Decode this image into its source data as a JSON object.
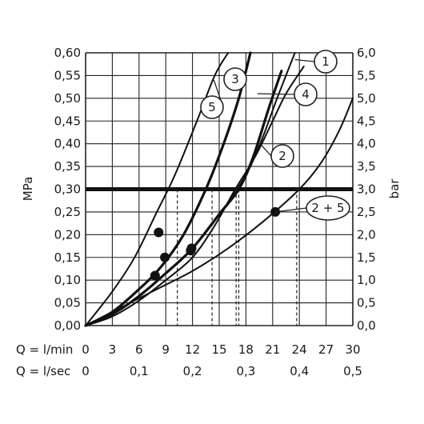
{
  "chart_data": {
    "type": "line",
    "ylabel_left": "MPa",
    "ylabel_right": "bar",
    "xlabel_lmin": "Q = l/min",
    "xlabel_lsec": "Q = l/sec",
    "xlim": [
      0,
      30
    ],
    "ylim": [
      0,
      0.6
    ],
    "grid": true,
    "x_ticks_lmin": [
      "0",
      "3",
      "6",
      "9",
      "12",
      "15",
      "18",
      "21",
      "24",
      "27",
      "30"
    ],
    "x_ticks_lsec": [
      {
        "x": 0,
        "label": "0"
      },
      {
        "x": 6,
        "label": "0,1"
      },
      {
        "x": 12,
        "label": "0,2"
      },
      {
        "x": 18,
        "label": "0,3"
      },
      {
        "x": 24,
        "label": "0,4"
      },
      {
        "x": 30,
        "label": "0,5"
      }
    ],
    "y_ticks_left": [
      {
        "y": 0.0,
        "label": "0,00"
      },
      {
        "y": 0.05,
        "label": "0,05"
      },
      {
        "y": 0.1,
        "label": "0,10"
      },
      {
        "y": 0.15,
        "label": "0,15"
      },
      {
        "y": 0.2,
        "label": "0,20"
      },
      {
        "y": 0.25,
        "label": "0,25"
      },
      {
        "y": 0.3,
        "label": "0,30"
      },
      {
        "y": 0.35,
        "label": "0,35"
      },
      {
        "y": 0.4,
        "label": "0,40"
      },
      {
        "y": 0.45,
        "label": "0,45"
      },
      {
        "y": 0.5,
        "label": "0,50"
      },
      {
        "y": 0.55,
        "label": "0,55"
      },
      {
        "y": 0.6,
        "label": "0,60"
      }
    ],
    "y_ticks_right": [
      {
        "y": 0.0,
        "label": "0,0"
      },
      {
        "y": 0.05,
        "label": "0,5"
      },
      {
        "y": 0.1,
        "label": "1,0"
      },
      {
        "y": 0.15,
        "label": "1,5"
      },
      {
        "y": 0.2,
        "label": "2,0"
      },
      {
        "y": 0.25,
        "label": "2,5"
      },
      {
        "y": 0.3,
        "label": "3,0"
      },
      {
        "y": 0.35,
        "label": "3,5"
      },
      {
        "y": 0.4,
        "label": "4,0"
      },
      {
        "y": 0.45,
        "label": "4,5"
      },
      {
        "y": 0.5,
        "label": "5,0"
      },
      {
        "y": 0.55,
        "label": "5,5"
      },
      {
        "y": 0.6,
        "label": "6,0"
      }
    ],
    "reference_line": {
      "y": 0.3
    },
    "series": [
      {
        "name": "5",
        "bold": false,
        "x": [
          0,
          3,
          5.5,
          8,
          10,
          12.5,
          14.5,
          16
        ],
        "y": [
          0,
          0.075,
          0.15,
          0.25,
          0.33,
          0.45,
          0.55,
          0.6
        ]
      },
      {
        "name": "3",
        "bold": true,
        "x": [
          0,
          3,
          6,
          8.5,
          11,
          13.5,
          15.5,
          17.2,
          18.5
        ],
        "y": [
          0,
          0.03,
          0.08,
          0.13,
          0.2,
          0.3,
          0.4,
          0.5,
          0.6
        ]
      },
      {
        "name": "4",
        "bold": true,
        "x": [
          0,
          3,
          6,
          9,
          12,
          15,
          17.2,
          18.8,
          20.6,
          22
        ],
        "y": [
          0,
          0.025,
          0.065,
          0.115,
          0.17,
          0.245,
          0.3,
          0.37,
          0.48,
          0.56
        ]
      },
      {
        "name": "1",
        "bold": false,
        "x": [
          0,
          3,
          6,
          9,
          12,
          14.5,
          17,
          18.5,
          20,
          21.5,
          23.5
        ],
        "y": [
          0,
          0.025,
          0.065,
          0.115,
          0.17,
          0.23,
          0.3,
          0.35,
          0.42,
          0.5,
          0.6
        ]
      },
      {
        "name": "2",
        "bold": false,
        "x": [
          0,
          3,
          6,
          9,
          12,
          14.5,
          16.8,
          19,
          21,
          22.5,
          24.5
        ],
        "y": [
          0,
          0.02,
          0.055,
          0.1,
          0.15,
          0.22,
          0.3,
          0.37,
          0.45,
          0.51,
          0.57
        ]
      },
      {
        "name": "2 + 5",
        "bold": false,
        "x": [
          0,
          4,
          8,
          12,
          16,
          20,
          24,
          26.5,
          28.5,
          30
        ],
        "y": [
          0,
          0.04,
          0.08,
          0.12,
          0.17,
          0.23,
          0.3,
          0.36,
          0.43,
          0.5
        ]
      }
    ],
    "markers": [
      {
        "x": 8.2,
        "y": 0.205
      },
      {
        "x": 8.9,
        "y": 0.15
      },
      {
        "x": 7.8,
        "y": 0.11
      },
      {
        "x": 11.8,
        "y": 0.165
      },
      {
        "x": 11.9,
        "y": 0.17
      },
      {
        "x": 21.3,
        "y": 0.25
      }
    ],
    "dashed_drops": [
      {
        "x": 10.3,
        "y": 0.3
      },
      {
        "x": 14.2,
        "y": 0.3
      },
      {
        "x": 16.9,
        "y": 0.3
      },
      {
        "x": 17.2,
        "y": 0.3
      },
      {
        "x": 23.7,
        "y": 0.3
      }
    ],
    "callouts": [
      {
        "series": "1",
        "label": "1",
        "shape": "circle",
        "anchor_x": 23.5,
        "anchor_y": 0.585
      },
      {
        "series": "3",
        "label": "3",
        "shape": "circle",
        "anchor_x": 17.8,
        "anchor_y": 0.54
      },
      {
        "series": "4",
        "label": "4",
        "shape": "circle",
        "anchor_x": 19.3,
        "anchor_y": 0.51
      },
      {
        "series": "5",
        "label": "5",
        "shape": "circle",
        "anchor_x": 14.4,
        "anchor_y": 0.54
      },
      {
        "series": "2",
        "label": "2",
        "shape": "circle",
        "anchor_x": 19.6,
        "anchor_y": 0.4
      },
      {
        "series": "2 + 5",
        "label": "2 + 5",
        "shape": "ellipse",
        "anchor_x": 21.3,
        "anchor_y": 0.25
      }
    ]
  }
}
